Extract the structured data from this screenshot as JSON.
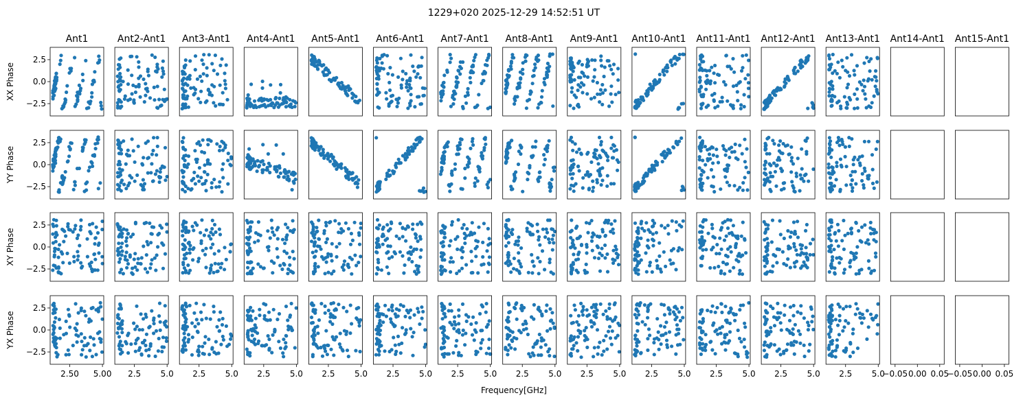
{
  "figure": {
    "title": "1229+020 2025-12-29 14:52:51 UT",
    "xlabel": "Frequency[GHz]"
  },
  "chart_data": {
    "type": "scatter",
    "title": "1229+020 2025-12-29 14:52:51 UT",
    "xlabel": "Frequency[GHz]",
    "columns": [
      "Ant1",
      "Ant2-Ant1",
      "Ant3-Ant1",
      "Ant4-Ant1",
      "Ant5-Ant1",
      "Ant6-Ant1",
      "Ant7-Ant1",
      "Ant8-Ant1",
      "Ant9-Ant1",
      "Ant10-Ant1",
      "Ant11-Ant1",
      "Ant12-Ant1",
      "Ant13-Ant1",
      "Ant14-Ant1",
      "Ant15-Ant1"
    ],
    "rows": [
      "XX Phase",
      "YY Phase",
      "XY Phase",
      "YX Phase"
    ],
    "xlim": [
      1.0,
      5.1
    ],
    "ylim": [
      -3.9,
      3.9
    ],
    "xticks": [
      2.5,
      5.0
    ],
    "xticklabels": [
      "2.5",
      "5.0"
    ],
    "xticks_first_col": [
      2.5,
      5.0
    ],
    "xticklabels_first_col": [
      "2.50",
      "5.00"
    ],
    "yticks": [
      -2.5,
      0.0,
      2.5
    ],
    "yticklabels": [
      "−2.5",
      "0.0",
      "2.5"
    ],
    "empty_panel_xlim": [
      -0.06,
      0.06
    ],
    "empty_panel_xticks": [
      -0.05,
      0.0,
      0.05
    ],
    "empty_panel_xticklabels": [
      "−0.05",
      "0.00",
      "0.05"
    ],
    "points_per_panel": 90,
    "empty_columns": [
      13,
      14
    ],
    "panels": [
      {
        "row": 0,
        "col": 0,
        "seed": 11,
        "pattern": "wrap-steep"
      },
      {
        "row": 0,
        "col": 1,
        "seed": 12,
        "pattern": "uniform"
      },
      {
        "row": 0,
        "col": 2,
        "seed": 13,
        "pattern": "uniform"
      },
      {
        "row": 0,
        "col": 3,
        "seed": 14,
        "pattern": "flat-low"
      },
      {
        "row": 0,
        "col": 4,
        "seed": 15,
        "pattern": "descending"
      },
      {
        "row": 0,
        "col": 5,
        "seed": 16,
        "pattern": "uniform"
      },
      {
        "row": 0,
        "col": 6,
        "seed": 17,
        "pattern": "wrap-steep"
      },
      {
        "row": 0,
        "col": 7,
        "seed": 18,
        "pattern": "wrap-steep"
      },
      {
        "row": 0,
        "col": 8,
        "seed": 19,
        "pattern": "uniform"
      },
      {
        "row": 0,
        "col": 9,
        "seed": 20,
        "pattern": "ascending"
      },
      {
        "row": 0,
        "col": 10,
        "seed": 21,
        "pattern": "uniform"
      },
      {
        "row": 0,
        "col": 11,
        "seed": 22,
        "pattern": "ascending"
      },
      {
        "row": 0,
        "col": 12,
        "seed": 23,
        "pattern": "uniform"
      },
      {
        "row": 1,
        "col": 0,
        "seed": 31,
        "pattern": "wrap-steep"
      },
      {
        "row": 1,
        "col": 1,
        "seed": 32,
        "pattern": "uniform"
      },
      {
        "row": 1,
        "col": 2,
        "seed": 33,
        "pattern": "uniform"
      },
      {
        "row": 1,
        "col": 3,
        "seed": 34,
        "pattern": "flat-mid"
      },
      {
        "row": 1,
        "col": 4,
        "seed": 35,
        "pattern": "descending"
      },
      {
        "row": 1,
        "col": 5,
        "seed": 36,
        "pattern": "ascending"
      },
      {
        "row": 1,
        "col": 6,
        "seed": 37,
        "pattern": "wrap-steep"
      },
      {
        "row": 1,
        "col": 7,
        "seed": 38,
        "pattern": "wrap-steep"
      },
      {
        "row": 1,
        "col": 8,
        "seed": 39,
        "pattern": "uniform"
      },
      {
        "row": 1,
        "col": 9,
        "seed": 40,
        "pattern": "ascending"
      },
      {
        "row": 1,
        "col": 10,
        "seed": 41,
        "pattern": "uniform"
      },
      {
        "row": 1,
        "col": 11,
        "seed": 42,
        "pattern": "uniform"
      },
      {
        "row": 1,
        "col": 12,
        "seed": 43,
        "pattern": "uniform"
      },
      {
        "row": 2,
        "col": 0,
        "seed": 51,
        "pattern": "uniform"
      },
      {
        "row": 2,
        "col": 1,
        "seed": 52,
        "pattern": "uniform"
      },
      {
        "row": 2,
        "col": 2,
        "seed": 53,
        "pattern": "uniform"
      },
      {
        "row": 2,
        "col": 3,
        "seed": 54,
        "pattern": "uniform"
      },
      {
        "row": 2,
        "col": 4,
        "seed": 55,
        "pattern": "uniform"
      },
      {
        "row": 2,
        "col": 5,
        "seed": 56,
        "pattern": "uniform"
      },
      {
        "row": 2,
        "col": 6,
        "seed": 57,
        "pattern": "uniform"
      },
      {
        "row": 2,
        "col": 7,
        "seed": 58,
        "pattern": "uniform"
      },
      {
        "row": 2,
        "col": 8,
        "seed": 59,
        "pattern": "uniform"
      },
      {
        "row": 2,
        "col": 9,
        "seed": 60,
        "pattern": "uniform"
      },
      {
        "row": 2,
        "col": 10,
        "seed": 61,
        "pattern": "uniform"
      },
      {
        "row": 2,
        "col": 11,
        "seed": 62,
        "pattern": "uniform"
      },
      {
        "row": 2,
        "col": 12,
        "seed": 63,
        "pattern": "uniform"
      },
      {
        "row": 3,
        "col": 0,
        "seed": 71,
        "pattern": "uniform"
      },
      {
        "row": 3,
        "col": 1,
        "seed": 72,
        "pattern": "uniform"
      },
      {
        "row": 3,
        "col": 2,
        "seed": 73,
        "pattern": "uniform"
      },
      {
        "row": 3,
        "col": 3,
        "seed": 74,
        "pattern": "uniform"
      },
      {
        "row": 3,
        "col": 4,
        "seed": 75,
        "pattern": "uniform"
      },
      {
        "row": 3,
        "col": 5,
        "seed": 76,
        "pattern": "uniform"
      },
      {
        "row": 3,
        "col": 6,
        "seed": 77,
        "pattern": "uniform"
      },
      {
        "row": 3,
        "col": 7,
        "seed": 78,
        "pattern": "uniform"
      },
      {
        "row": 3,
        "col": 8,
        "seed": 79,
        "pattern": "uniform"
      },
      {
        "row": 3,
        "col": 9,
        "seed": 80,
        "pattern": "uniform"
      },
      {
        "row": 3,
        "col": 10,
        "seed": 81,
        "pattern": "uniform"
      },
      {
        "row": 3,
        "col": 11,
        "seed": 82,
        "pattern": "uniform"
      },
      {
        "row": 3,
        "col": 12,
        "seed": 83,
        "pattern": "uniform"
      }
    ],
    "marker_color": "#1f77b4",
    "grid": false,
    "legend": "none"
  }
}
